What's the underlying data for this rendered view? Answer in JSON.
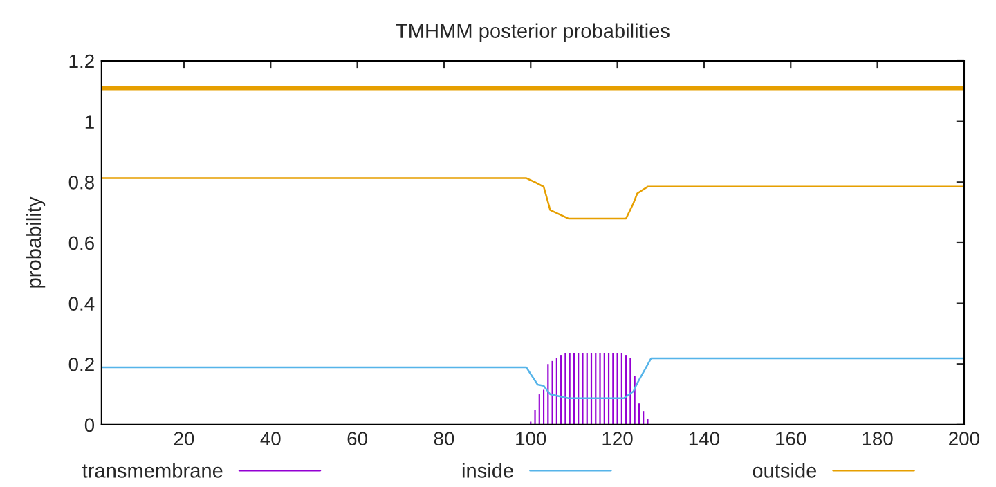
{
  "chart_data": {
    "type": "line",
    "title": "TMHMM posterior probabilities",
    "ylabel": "probability",
    "xlim": [
      1,
      200
    ],
    "ylim": [
      0,
      1.2
    ],
    "xticks": [
      20,
      40,
      60,
      80,
      100,
      120,
      140,
      160,
      180,
      200
    ],
    "yticks": [
      0,
      0.2,
      0.4,
      0.6,
      0.8,
      1,
      1.2
    ],
    "grid": false,
    "legend": "bottom",
    "series": [
      {
        "name": "transmembrane",
        "type": "bar",
        "color": "#9400d3",
        "x": [
          100,
          101,
          102,
          103,
          104,
          105,
          106,
          107,
          108,
          109,
          110,
          111,
          112,
          113,
          114,
          115,
          116,
          117,
          118,
          119,
          120,
          121,
          122,
          123,
          124,
          125,
          126,
          127
        ],
        "values": [
          0.01,
          0.05,
          0.1,
          0.115,
          0.2,
          0.21,
          0.22,
          0.23,
          0.236,
          0.236,
          0.236,
          0.236,
          0.236,
          0.236,
          0.236,
          0.236,
          0.236,
          0.236,
          0.236,
          0.236,
          0.236,
          0.236,
          0.23,
          0.22,
          0.16,
          0.07,
          0.045,
          0.02
        ]
      },
      {
        "name": "inside",
        "color": "#56b4e9",
        "x": [
          1,
          99,
          101.6,
          103,
          104.5,
          108.7,
          121.5,
          123.7,
          124.6,
          127.8,
          200
        ],
        "values": [
          0.189,
          0.189,
          0.132,
          0.128,
          0.1,
          0.087,
          0.087,
          0.11,
          0.137,
          0.219,
          0.219
        ]
      },
      {
        "name": "outside",
        "color": "#e69f00",
        "x": [
          1,
          99,
          101,
          103,
          104.5,
          108.7,
          122,
          123.7,
          124.6,
          127,
          200
        ],
        "values": [
          0.813,
          0.813,
          0.8,
          0.785,
          0.708,
          0.68,
          0.68,
          0.73,
          0.763,
          0.785,
          0.785
        ]
      }
    ],
    "ref_lines": [
      {
        "axis": "y",
        "value": 1.11,
        "color": "#e69f00",
        "line_style": "solid"
      }
    ]
  }
}
